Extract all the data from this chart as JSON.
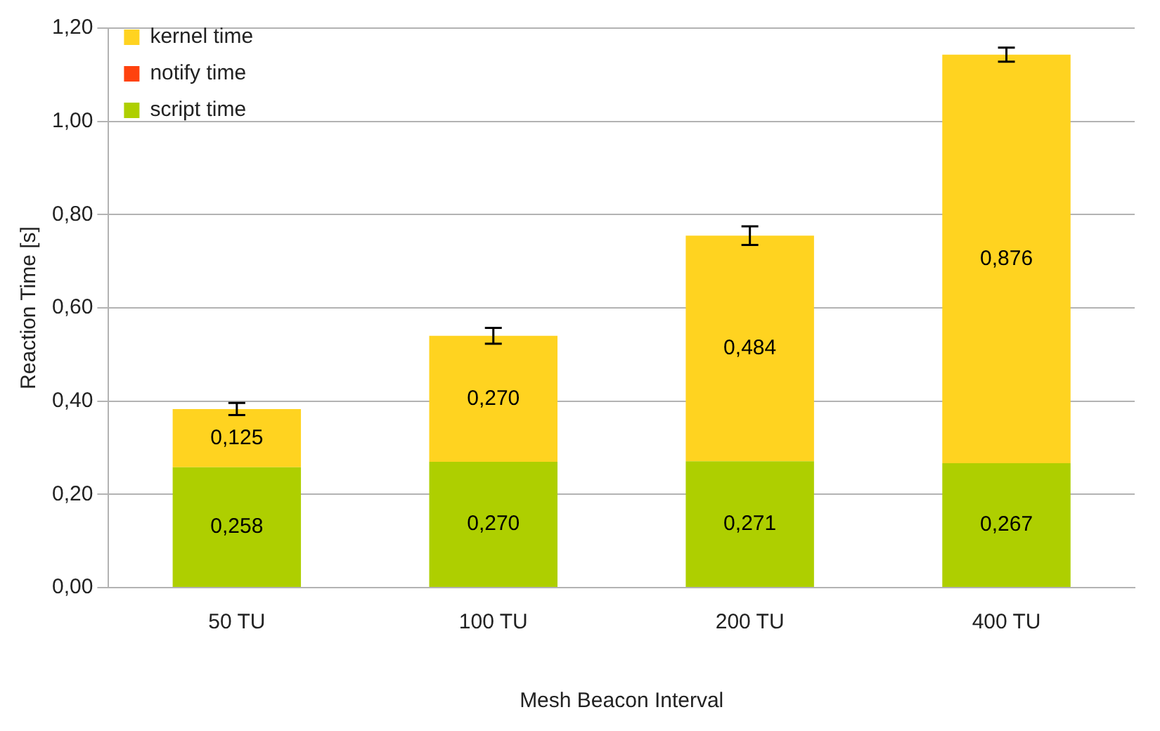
{
  "chart_data": {
    "type": "bar",
    "stacked": true,
    "xlabel": "Mesh Beacon Interval",
    "ylabel": "Reaction Time [s]",
    "categories": [
      "50 TU",
      "100 TU",
      "200 TU",
      "400 TU"
    ],
    "series": [
      {
        "name": "script time",
        "color": "#aecf00",
        "values": [
          0.258,
          0.27,
          0.271,
          0.267
        ],
        "value_labels": [
          "0,258",
          "0,270",
          "0,271",
          "0,267"
        ]
      },
      {
        "name": "notify time",
        "color": "#ff420e",
        "values": [
          0,
          0,
          0,
          0
        ]
      },
      {
        "name": "kernel time",
        "color": "#ffd320",
        "values": [
          0.125,
          0.27,
          0.484,
          0.876
        ],
        "value_labels": [
          "0,125",
          "0,270",
          "0,484",
          "0,876"
        ],
        "errors": [
          0.013,
          0.017,
          0.02,
          0.015
        ]
      }
    ],
    "ylim": [
      0,
      1.2
    ],
    "yticks": [
      {
        "value": 0,
        "label": "0,00"
      },
      {
        "value": 0.2,
        "label": "0,20"
      },
      {
        "value": 0.4,
        "label": "0,40"
      },
      {
        "value": 0.6,
        "label": "0,60"
      },
      {
        "value": 0.8,
        "label": "0,80"
      },
      {
        "value": 1,
        "label": "1,00"
      },
      {
        "value": 1.2,
        "label": "1,20"
      }
    ],
    "grid": "y",
    "legend": "top left"
  }
}
